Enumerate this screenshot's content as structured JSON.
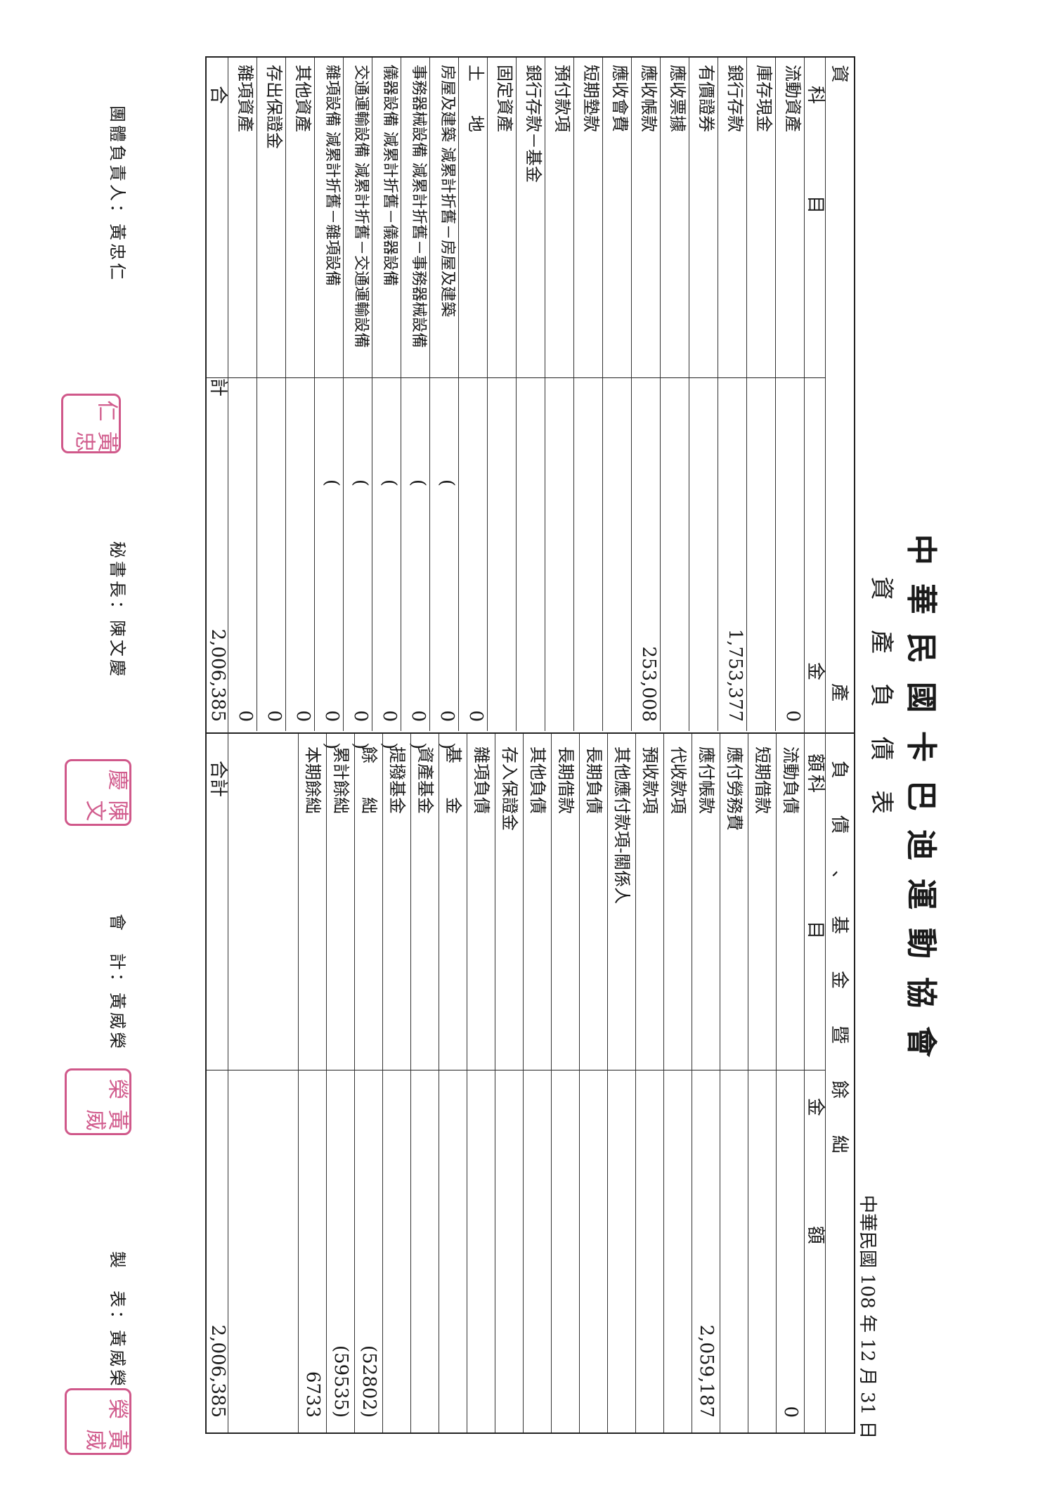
{
  "org_name": "中華民國卡巴迪運動協會",
  "doc_title": "資產負債表",
  "report_date": "中華民國 108 年 12 月 31 日",
  "assets": {
    "header_section": "資",
    "header_section2": "產",
    "header_subject": "科　　　　　目",
    "header_amount": "金　　　　額",
    "rows": [
      {
        "label": "流動資產",
        "amount": "0"
      },
      {
        "label": "庫存現金",
        "amount": ""
      },
      {
        "label": "銀行存款",
        "amount": "1,753,377"
      },
      {
        "label": "有價證券",
        "amount": ""
      },
      {
        "label": "應收票據",
        "amount": ""
      },
      {
        "label": "應收帳款",
        "amount": "253,008"
      },
      {
        "label": "應收會費",
        "amount": ""
      },
      {
        "label": "短期墊款",
        "amount": ""
      },
      {
        "label": "預付款項",
        "amount": ""
      },
      {
        "label": "銀行存款－基金",
        "amount": ""
      },
      {
        "label": "固定資產",
        "amount": ""
      },
      {
        "label": "土　　地",
        "amount": "0"
      },
      {
        "label": "房屋及建築",
        "sub": "減累計折舊－房屋及建築",
        "amount": "0"
      },
      {
        "label": "事務器械設備",
        "sub": "減累計折舊－事務器械設備",
        "amount": "0"
      },
      {
        "label": "儀器設備",
        "sub": "減累計折舊－儀器設備",
        "amount": "0"
      },
      {
        "label": "交通運輸設備",
        "sub": "減累計折舊－交通運輸設備",
        "amount": "0"
      },
      {
        "label": "雜項設備",
        "sub": "減累計折舊－雜項設備",
        "amount": "0"
      },
      {
        "label": "其他資產",
        "amount": "0"
      },
      {
        "label": "存出保證金",
        "amount": "0"
      },
      {
        "label": "雜項資產",
        "amount": "0"
      }
    ],
    "total_label": "合　　　　　　　　　　　　　　　計",
    "total_amount": "2,006,385"
  },
  "liabilities": {
    "header_section": "負　　債　　、　　基　　金　　暨　　餘　　絀",
    "header_subject": "科　　　　　　　目",
    "header_amount": "金　　　　　　額",
    "rows": [
      {
        "label": "流動負債",
        "amount": "0"
      },
      {
        "label": "短期借款",
        "amount": ""
      },
      {
        "label": "應付勞務費",
        "amount": ""
      },
      {
        "label": "應付帳款",
        "amount": "2,059,187"
      },
      {
        "label": "代收款項",
        "amount": ""
      },
      {
        "label": "預收款項",
        "amount": ""
      },
      {
        "label": "其他應付款項-關係人",
        "amount": ""
      },
      {
        "label": "長期負債",
        "amount": ""
      },
      {
        "label": "長期借款",
        "amount": ""
      },
      {
        "label": "其他負債",
        "amount": ""
      },
      {
        "label": "存入保證金",
        "amount": ""
      },
      {
        "label": "雜項負債",
        "amount": ""
      },
      {
        "label": "基　　金",
        "amount": ""
      },
      {
        "label": "資產基金",
        "amount": ""
      },
      {
        "label": "提撥基金",
        "amount": ""
      },
      {
        "label": "餘　　絀",
        "amount": "(52802)"
      },
      {
        "label": "累計餘絀",
        "amount": "(59535)"
      },
      {
        "label": "本期餘絀",
        "amount": "6733"
      }
    ],
    "total_label": "合計",
    "total_amount": "2,006,385"
  },
  "signatures": {
    "leader": "團體負責人：黃忠仁",
    "secretary": "秘書長：陳文慶",
    "accountant": "會　計：黃威榮",
    "preparer": "製　表：黃威榮"
  },
  "seals": {
    "leader_seal": "黃忠仁",
    "secretary_seal": "陳文慶",
    "accountant_seal": "黃威榮",
    "preparer_seal": "黃威榮"
  },
  "colors": {
    "seal": "#d0588a",
    "ink": "#1a1a1a"
  }
}
